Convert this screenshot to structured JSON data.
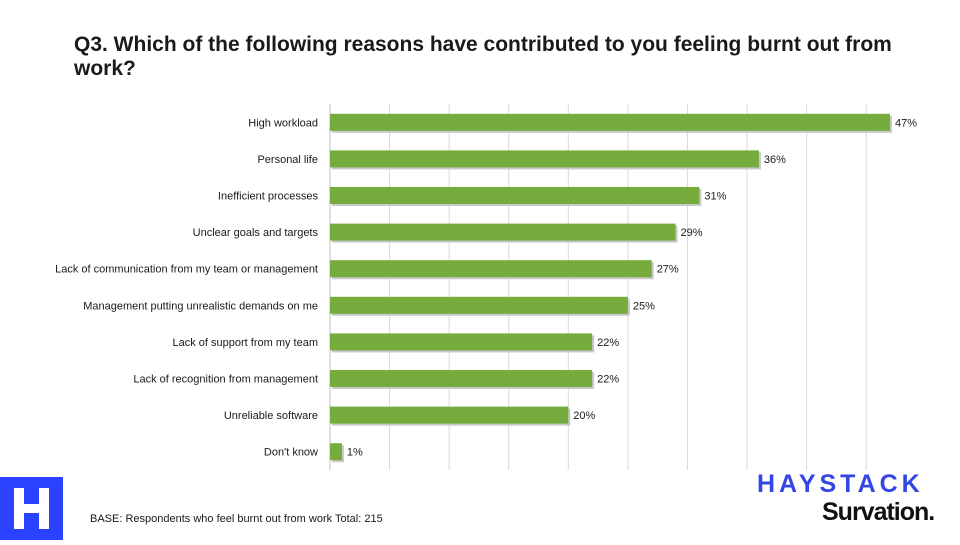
{
  "chart_data": {
    "type": "bar",
    "orientation": "horizontal",
    "title": "Q3. Which of the following reasons have contributed to you feeling burnt out from work?",
    "categories": [
      "High workload",
      "Personal life",
      "Inefficient processes",
      "Unclear goals and targets",
      "Lack of communication from my team or management",
      "Management putting unrealistic demands on me",
      "Lack of support from my team",
      "Lack of recognition from management",
      "Unreliable software",
      "Don't know"
    ],
    "values": [
      47,
      36,
      31,
      29,
      27,
      25,
      22,
      22,
      20,
      1
    ],
    "value_labels": [
      "47%",
      "36%",
      "31%",
      "29%",
      "27%",
      "25%",
      "22%",
      "22%",
      "20%",
      "1%"
    ],
    "unit": "%",
    "xlim": [
      0,
      50
    ],
    "grid": true,
    "bar_color": "#76ab3d"
  },
  "footer": {
    "base_note": "BASE: Respondents who feel burnt out from work Total: 215"
  },
  "logos": {
    "haystack": "HAYSTACK",
    "survation": "Survation.",
    "h_mark": "H"
  },
  "colors": {
    "bar": "#76ab3d",
    "haystack_blue": "#3346e6",
    "h_logo_bg": "#2b43ff"
  }
}
